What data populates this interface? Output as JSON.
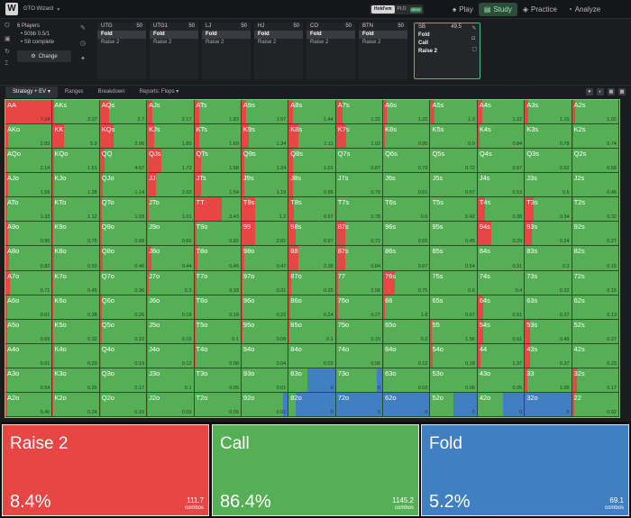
{
  "app": {
    "title": "GTO Wizard",
    "logo_glyph": "W"
  },
  "game_toggle": {
    "holdem": "Hold'em",
    "plo": "PLO",
    "plo_badge": "NEW"
  },
  "nav": [
    {
      "label": "Play",
      "icon": "spade"
    },
    {
      "label": "Study",
      "icon": "book"
    },
    {
      "label": "Practice",
      "icon": "gamepad"
    },
    {
      "label": "Analyze",
      "icon": "chart"
    }
  ],
  "settings": {
    "players": "6 Players",
    "stakes": "• 50bb 0.5/1",
    "complete": "• S8 complete",
    "change_label": "Change"
  },
  "positions": [
    {
      "name": "UTG",
      "stack": "50",
      "actions": [
        "Fold",
        "Raise 2"
      ],
      "selected": 0
    },
    {
      "name": "UTG1",
      "stack": "50",
      "actions": [
        "Fold",
        "Raise 2"
      ],
      "selected": 0
    },
    {
      "name": "LJ",
      "stack": "50",
      "actions": [
        "Fold",
        "Raise 2"
      ],
      "selected": 0
    },
    {
      "name": "HJ",
      "stack": "50",
      "actions": [
        "Fold",
        "Raise 2"
      ],
      "selected": 0
    },
    {
      "name": "CO",
      "stack": "50",
      "actions": [
        "Fold",
        "Raise 2"
      ],
      "selected": 0
    },
    {
      "name": "BTN",
      "stack": "50",
      "actions": [
        "Fold",
        "Raise 2"
      ],
      "selected": 0
    },
    {
      "name": "SB",
      "stack": "49.5",
      "actions": [
        "Fold",
        "Call",
        "Raise 2"
      ],
      "selected": -1,
      "active": true
    }
  ],
  "tabs": [
    "Strategy + EV",
    "Ranges",
    "Breakdown",
    "Reports: Flops"
  ],
  "colors": {
    "raise": "#e84545",
    "call": "#55b055",
    "fold": "#3f7fc2"
  },
  "matrix_rows": [
    [
      [
        "AA",
        "7.24",
        1,
        0
      ],
      [
        "AKs",
        "3.37",
        0.03,
        0
      ],
      [
        "AQs",
        "2.7",
        0.2,
        0
      ],
      [
        "AJs",
        "2.17",
        0.12,
        0
      ],
      [
        "ATs",
        "1.83",
        0.1,
        0
      ],
      [
        "A9s",
        "1.57",
        0.1,
        0
      ],
      [
        "A8s",
        "1.44",
        0.1,
        0
      ],
      [
        "A7s",
        "1.32",
        0.14,
        0
      ],
      [
        "A6s",
        "1.22",
        0.08,
        0
      ],
      [
        "A5s",
        "1.3",
        0.08,
        0
      ],
      [
        "A4s",
        "1.22",
        0.1,
        0
      ],
      [
        "A3s",
        "1.15",
        0.08,
        0
      ],
      [
        "A2s",
        "1.02",
        0.06,
        0
      ]
    ],
    [
      [
        "AKo",
        "2.83",
        0.06,
        0
      ],
      [
        "KK",
        "5.9",
        0.25,
        0
      ],
      [
        "KQs",
        "2.06",
        0.3,
        0
      ],
      [
        "KJs",
        "1.85",
        0.15,
        0
      ],
      [
        "KTs",
        "1.69",
        0.1,
        0
      ],
      [
        "K9s",
        "1.34",
        0.15,
        0
      ],
      [
        "K8s",
        "1.11",
        0.2,
        0
      ],
      [
        "K7s",
        "1.02",
        0.22,
        0
      ],
      [
        "K6s",
        "0.95",
        0.04,
        0
      ],
      [
        "K5s",
        "0.9",
        0,
        0
      ],
      [
        "K4s",
        "0.84",
        0.05,
        0
      ],
      [
        "K3s",
        "0.78",
        0,
        0
      ],
      [
        "K2s",
        "0.74",
        0.03,
        0
      ]
    ],
    [
      [
        "AQo",
        "2.14",
        0.03,
        0
      ],
      [
        "KQo",
        "1.51",
        0.03,
        0
      ],
      [
        "QQ",
        "4.67",
        0.1,
        0
      ],
      [
        "QJs",
        "1.73",
        0.3,
        0
      ],
      [
        "QTs",
        "1.58",
        0.15,
        0
      ],
      [
        "Q9s",
        "1.24",
        0.06,
        0
      ],
      [
        "Q8s",
        "1.01",
        0.1,
        0
      ],
      [
        "Q7s",
        "0.87",
        0,
        0
      ],
      [
        "Q6s",
        "0.79",
        0,
        0
      ],
      [
        "Q5s",
        "0.72",
        0,
        0
      ],
      [
        "Q4s",
        "0.67",
        0,
        0
      ],
      [
        "Q3s",
        "0.62",
        0,
        0
      ],
      [
        "Q2s",
        "0.58",
        0,
        0
      ]
    ],
    [
      [
        "AJo",
        "1.59",
        0.06,
        0
      ],
      [
        "KJo",
        "1.28",
        0.03,
        0
      ],
      [
        "QJo",
        "1.14",
        0.06,
        0
      ],
      [
        "JJ",
        "3.92",
        0.2,
        0
      ],
      [
        "JTs",
        "1.54",
        0.15,
        0
      ],
      [
        "J9s",
        "1.19",
        0.06,
        0
      ],
      [
        "J8s",
        "0.96",
        0.1,
        0
      ],
      [
        "J7s",
        "0.78",
        0,
        0
      ],
      [
        "J6s",
        "0.61",
        0,
        0
      ],
      [
        "J5s",
        "0.57",
        0,
        0
      ],
      [
        "J4s",
        "0.53",
        0,
        0
      ],
      [
        "J3s",
        "0.5",
        0,
        0
      ],
      [
        "J2s",
        "0.46",
        0,
        0
      ]
    ],
    [
      [
        "ATo",
        "1.33",
        0.04,
        0
      ],
      [
        "KTo",
        "1.12",
        0.03,
        0
      ],
      [
        "QTo",
        "1.03",
        0.04,
        0
      ],
      [
        "JTo",
        "1.01",
        0.03,
        0
      ],
      [
        "TT",
        "3.43",
        0.6,
        0
      ],
      [
        "T9s",
        "1.2",
        0.3,
        0
      ],
      [
        "T8s",
        "0.97",
        0.12,
        0
      ],
      [
        "T7s",
        "0.78",
        0.03,
        0
      ],
      [
        "T6s",
        "0.6",
        0,
        0
      ],
      [
        "T5s",
        "0.42",
        0,
        0
      ],
      [
        "T4s",
        "0.38",
        0.15,
        0
      ],
      [
        "T3s",
        "0.34",
        0.2,
        0
      ],
      [
        "T2s",
        "0.32",
        0.03,
        0
      ]
    ],
    [
      [
        "A9o",
        "0.96",
        0.06,
        0
      ],
      [
        "K9o",
        "0.75",
        0.02,
        0
      ],
      [
        "Q9o",
        "0.68",
        0.04,
        0
      ],
      [
        "J9o",
        "0.66",
        0.02,
        0
      ],
      [
        "T9o",
        "0.82",
        0.04,
        0
      ],
      [
        "99",
        "2.81",
        0.3,
        0
      ],
      [
        "98s",
        "0.97",
        0.15,
        0
      ],
      [
        "87s",
        "0.72",
        0.2,
        0
      ],
      [
        "96s",
        "0.65",
        0,
        0
      ],
      [
        "95s",
        "0.45",
        0,
        0
      ],
      [
        "94s",
        "0.29",
        0.3,
        0
      ],
      [
        "93s",
        "0.24",
        0.15,
        0
      ],
      [
        "92s",
        "0.27",
        0,
        0
      ]
    ],
    [
      [
        "A8o",
        "0.82",
        0.08,
        0
      ],
      [
        "K8o",
        "0.53",
        0.03,
        0
      ],
      [
        "Q8o",
        "0.46",
        0.06,
        0
      ],
      [
        "J8o",
        "0.44",
        0.1,
        0
      ],
      [
        "T8o",
        "0.46",
        0.06,
        0
      ],
      [
        "98o",
        "0.47",
        0.06,
        0
      ],
      [
        "88",
        "2.38",
        0.2,
        0
      ],
      [
        "87s",
        "0.84",
        0.2,
        0
      ],
      [
        "86s",
        "0.67",
        0,
        0
      ],
      [
        "85s",
        "0.54",
        0,
        0
      ],
      [
        "84s",
        "0.31",
        0,
        0
      ],
      [
        "83s",
        "0.2",
        0,
        0
      ],
      [
        "82s",
        "0.15",
        0,
        0
      ]
    ],
    [
      [
        "A7o",
        "0.71",
        0.1,
        0
      ],
      [
        "K7o",
        "0.45",
        0.02,
        0
      ],
      [
        "Q7o",
        "0.36",
        0.02,
        0
      ],
      [
        "J7o",
        "0.3",
        0.04,
        0
      ],
      [
        "T7o",
        "0.33",
        0.04,
        0
      ],
      [
        "97o",
        "0.31",
        0.02,
        0
      ],
      [
        "87o",
        "0.35",
        0.06,
        0
      ],
      [
        "77",
        "2.06",
        0.04,
        0
      ],
      [
        "76s",
        "0.75",
        0.25,
        0
      ],
      [
        "75s",
        "0.6",
        0,
        0
      ],
      [
        "74s",
        "0.4",
        0,
        0
      ],
      [
        "73s",
        "0.22",
        0,
        0
      ],
      [
        "72s",
        "0.15",
        0,
        0
      ]
    ],
    [
      [
        "A6o",
        "0.61",
        0.04,
        0
      ],
      [
        "K6o",
        "0.38",
        0.02,
        0
      ],
      [
        "Q6o",
        "0.26",
        0.04,
        0
      ],
      [
        "J6o",
        "0.18",
        0.02,
        0
      ],
      [
        "T6o",
        "0.18",
        0.02,
        0
      ],
      [
        "96o",
        "0.22",
        0.02,
        0
      ],
      [
        "86o",
        "0.24",
        0.04,
        0
      ],
      [
        "76o",
        "0.27",
        0.04,
        0
      ],
      [
        "66",
        "1.8",
        0.04,
        0
      ],
      [
        "65s",
        "0.67",
        0,
        0
      ],
      [
        "64s",
        "0.51",
        0.12,
        0
      ],
      [
        "63s",
        "0.27",
        0,
        0
      ],
      [
        "62s",
        "0.13",
        0,
        0
      ]
    ],
    [
      [
        "A5o",
        "0.69",
        0.04,
        0
      ],
      [
        "K5o",
        "0.32",
        0.02,
        0
      ],
      [
        "Q5o",
        "0.22",
        0.04,
        0
      ],
      [
        "J5o",
        "0.15",
        0.02,
        0
      ],
      [
        "T5o",
        "0.1",
        0.02,
        0
      ],
      [
        "95o",
        "0.08",
        0.02,
        0
      ],
      [
        "85o",
        "0.1",
        0.02,
        0
      ],
      [
        "75o",
        "0.15",
        0.02,
        0
      ],
      [
        "65o",
        "0.2",
        0.02,
        0
      ],
      [
        "55",
        "1.56",
        0.03,
        0
      ],
      [
        "54s",
        "0.61",
        0.12,
        0
      ],
      [
        "53s",
        "0.45",
        0.12,
        0
      ],
      [
        "52s",
        "0.27",
        0,
        0
      ]
    ],
    [
      [
        "A4o",
        "0.61",
        0.04,
        0
      ],
      [
        "K4o",
        "0.29",
        0.04,
        0
      ],
      [
        "Q4o",
        "0.19",
        0.02,
        0
      ],
      [
        "J4o",
        "0.12",
        0.02,
        0
      ],
      [
        "T4o",
        "0.08",
        0.02,
        0
      ],
      [
        "94o",
        "0.04",
        0,
        0
      ],
      [
        "84o",
        "0.03",
        0,
        0
      ],
      [
        "74o",
        "0.06",
        0,
        0
      ],
      [
        "64o",
        "0.12",
        0.02,
        0
      ],
      [
        "54o",
        "0.18",
        0.04,
        0
      ],
      [
        "44",
        "1.37",
        0.06,
        0
      ],
      [
        "43s",
        "0.37",
        0.12,
        0
      ],
      [
        "42s",
        "0.23",
        0,
        0
      ]
    ],
    [
      [
        "A3o",
        "0.54",
        0.04,
        0
      ],
      [
        "K3o",
        "0.26",
        0.02,
        0
      ],
      [
        "Q3o",
        "0.17",
        0.02,
        0
      ],
      [
        "J3o",
        "0.1",
        0.02,
        0
      ],
      [
        "T3o",
        "0.05",
        0,
        0
      ],
      [
        "93o",
        "0.01",
        0,
        0
      ],
      [
        "83o",
        "0",
        0,
        0.6
      ],
      [
        "73o",
        "0",
        0,
        0.12
      ],
      [
        "63o",
        "0.03",
        0,
        0
      ],
      [
        "53o",
        "0.06",
        0,
        0
      ],
      [
        "43o",
        "0.05",
        0,
        0
      ],
      [
        "33",
        "1.09",
        0.06,
        0
      ],
      [
        "32s",
        "0.17",
        0.1,
        0
      ]
    ],
    [
      [
        "A2o",
        "0.46",
        0.04,
        0
      ],
      [
        "K2o",
        "0.24",
        0.02,
        0
      ],
      [
        "Q2o",
        "0.15",
        0.02,
        0
      ],
      [
        "J2o",
        "0.09",
        0.02,
        0
      ],
      [
        "T2o",
        "0.05",
        0,
        0
      ],
      [
        "92o",
        "0.01",
        0,
        0.1
      ],
      [
        "82o",
        "0",
        0,
        0.85
      ],
      [
        "72o",
        "0",
        0,
        1
      ],
      [
        "62o",
        "0",
        0,
        1
      ],
      [
        "52o",
        "0",
        0,
        0.5
      ],
      [
        "42o",
        "0",
        0,
        0.45
      ],
      [
        "32o",
        "0",
        0,
        1
      ],
      [
        "22",
        "0.92",
        0.04,
        0
      ]
    ]
  ],
  "summary": [
    {
      "label": "Raise 2",
      "pct": "8.4%",
      "combos": "111.7",
      "combos_label": "combos"
    },
    {
      "label": "Call",
      "pct": "86.4%",
      "combos": "1145.2",
      "combos_label": "combos"
    },
    {
      "label": "Fold",
      "pct": "5.2%",
      "combos": "69.1",
      "combos_label": "combos"
    }
  ]
}
